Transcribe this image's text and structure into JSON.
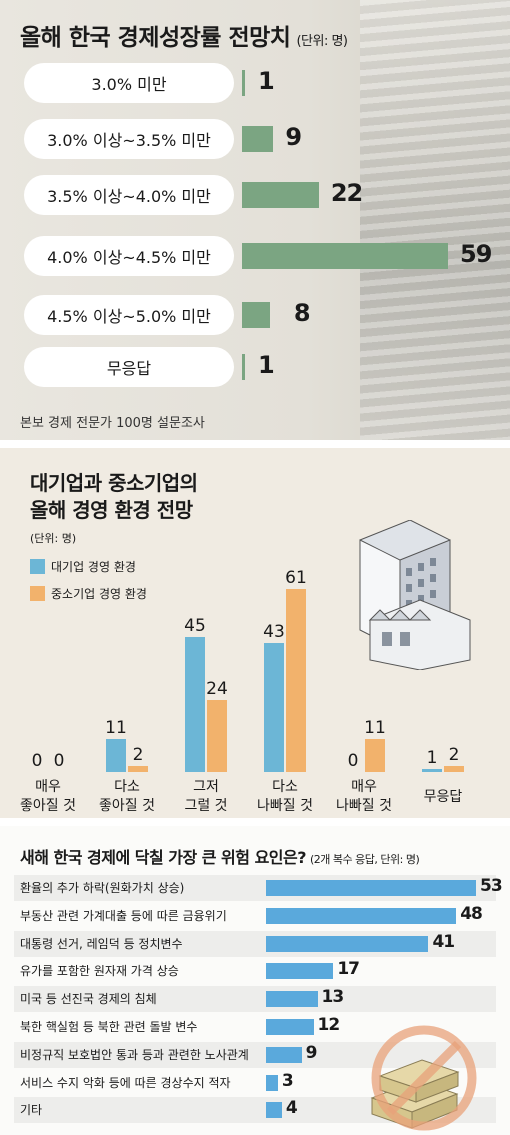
{
  "section1": {
    "title": "올해 한국 경제성장률 전망치",
    "unit": "(단위: 명)",
    "source": "본보 경제 전문가 100명 설문조사",
    "colors": {
      "bar": "#7ba582",
      "label_bg": "#ffffff"
    }
  },
  "section2": {
    "title_line1": "대기업과 중소기업의",
    "title_line2": "올해 경영 환경 전망",
    "unit": "(단위: 명)",
    "categories_line1": [
      "매우",
      "다소",
      "그저",
      "다소",
      "매우",
      "무응답"
    ],
    "categories_line2": [
      "좋아질 것",
      "좋아질 것",
      "그럴 것",
      "나빠질 것",
      "나빠질 것",
      ""
    ],
    "colors": {
      "large": "#6cb6d6",
      "small": "#f2b26c"
    }
  },
  "section3": {
    "title": "새해 한국 경제에 닥칠 가장 큰 위험 요인은?",
    "unit": "(2개 복수 응답, 단위: 명)",
    "colors": {
      "bar": "#5aa9dc"
    }
  },
  "chart_data": [
    {
      "type": "bar",
      "orientation": "horizontal",
      "title": "올해 한국 경제성장률 전망치",
      "categories": [
        "3.0% 미만",
        "3.0% 이상~3.5% 미만",
        "3.5% 이상~4.0% 미만",
        "4.0% 이상~4.5% 미만",
        "4.5% 이상~5.0% 미만",
        "무응답"
      ],
      "values": [
        1,
        9,
        22,
        59,
        8,
        1
      ]
    },
    {
      "type": "bar",
      "orientation": "vertical",
      "title": "대기업과 중소기업의 올해 경영 환경 전망",
      "categories": [
        "매우 좋아질 것",
        "다소 좋아질 것",
        "그저 그럴 것",
        "다소 나빠질 것",
        "매우 나빠질 것",
        "무응답"
      ],
      "series": [
        {
          "name": "대기업 경영 환경",
          "values": [
            0,
            11,
            45,
            43,
            0,
            1
          ]
        },
        {
          "name": "중소기업 경영 환경",
          "values": [
            0,
            2,
            24,
            61,
            11,
            2
          ]
        }
      ]
    },
    {
      "type": "bar",
      "orientation": "horizontal",
      "title": "새해 한국 경제에 닥칠 가장 큰 위험 요인은?",
      "categories": [
        "환율의 추가 하락(원화가치 상승)",
        "부동산 관련 가계대출 등에 따른 금융위기",
        "대통령 선거, 레임덕 등 정치변수",
        "유가를 포함한 원자재 가격 상승",
        "미국 등 선진국 경제의 침체",
        "북한 핵실험 등 북한 관련 돌발 변수",
        "비정규직 보호법안 통과 등과 관련한 노사관계",
        "서비스 수지 악화 등에 따른 경상수지 적자",
        "기타"
      ],
      "values": [
        53,
        48,
        41,
        17,
        13,
        12,
        9,
        3,
        4
      ]
    }
  ]
}
